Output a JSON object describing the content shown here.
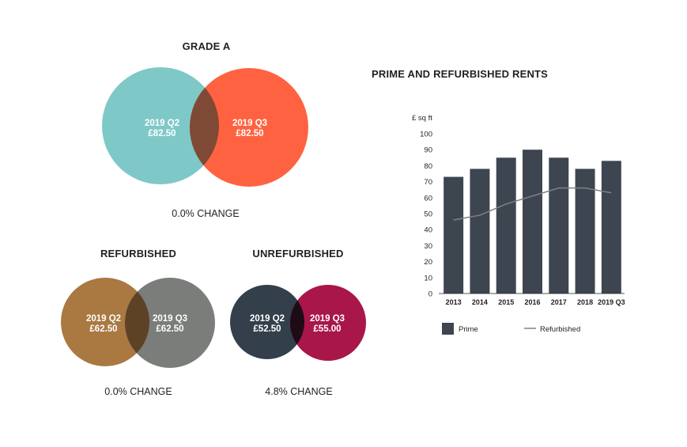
{
  "venn_panels": {
    "grade_a": {
      "title": "GRADE A",
      "left": {
        "period": "2019 Q2",
        "value": "£82.50",
        "color": "#7ec8c8"
      },
      "right": {
        "period": "2019 Q3",
        "value": "£82.50",
        "color": "#ff6240"
      },
      "overlap_color": "#7f4a35",
      "change": "0.0% CHANGE"
    },
    "refurbished": {
      "title": "REFURBISHED",
      "left": {
        "period": "2019 Q2",
        "value": "£62.50",
        "color": "#a97941"
      },
      "right": {
        "period": "2019 Q3",
        "value": "£62.50",
        "color": "#7b7d7b"
      },
      "overlap_color": "#5d4226",
      "change": "0.0% CHANGE"
    },
    "unrefurbished": {
      "title": "UNREFURBISHED",
      "left": {
        "period": "2019 Q2",
        "value": "£52.50",
        "color": "#333f4a"
      },
      "right": {
        "period": "2019 Q3",
        "value": "£55.00",
        "color": "#a8164a"
      },
      "overlap_color": "#1e0b16",
      "change": "4.8% CHANGE"
    }
  },
  "chart_data": {
    "type": "bar",
    "title": "PRIME AND REFURBISHED RENTS",
    "ylabel": "£ sq ft",
    "xlabel": "",
    "ylim": [
      0,
      100
    ],
    "yticks": [
      0,
      10,
      20,
      30,
      40,
      50,
      60,
      70,
      80,
      90,
      100
    ],
    "categories": [
      "2013",
      "2014",
      "2015",
      "2016",
      "2017",
      "2018",
      "2019 Q3"
    ],
    "series": [
      {
        "name": "Prime",
        "kind": "bar",
        "color": "#3d4550",
        "values": [
          73,
          78,
          85,
          90,
          85,
          78,
          83
        ]
      },
      {
        "name": "Refurbished",
        "kind": "line",
        "color": "#808080",
        "values": [
          46,
          49,
          56,
          61,
          66,
          66,
          63
        ]
      }
    ],
    "legend_position": "bottom-left",
    "grid": false
  }
}
